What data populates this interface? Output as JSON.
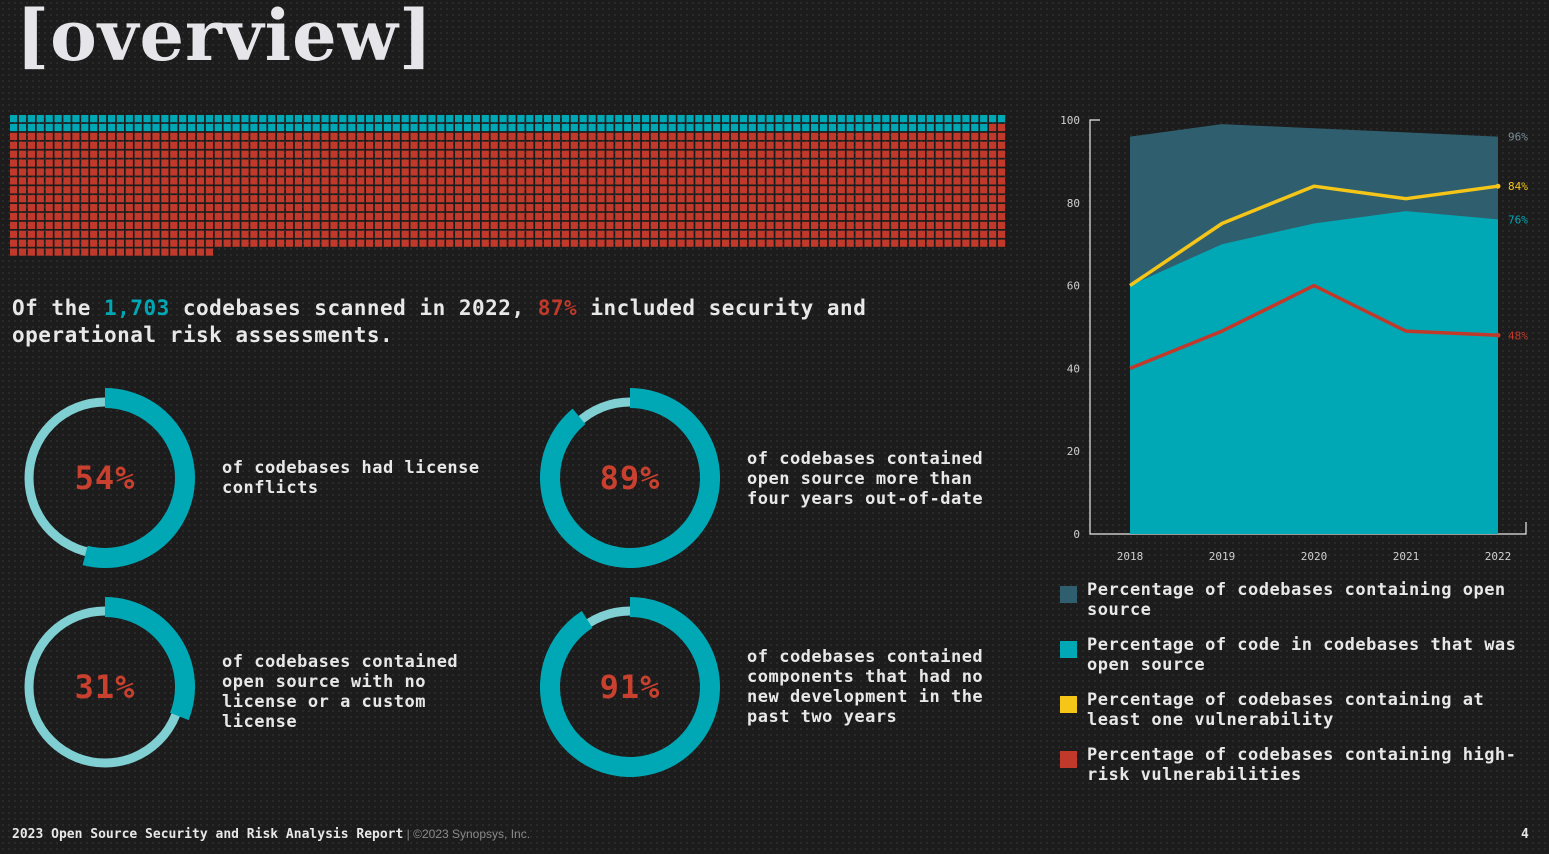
{
  "page_title": "[overview]",
  "summary": {
    "part1": "Of the ",
    "count": "1,703",
    "part2": " codebases scanned in 2022, ",
    "percent": "87%",
    "part3": " included security and operational risk assessments."
  },
  "waffle": {
    "total_cells": 1703,
    "highlighted_cells": 1481,
    "highlight_color": "#c0392b",
    "base_color": "#00a8b5"
  },
  "stats": [
    {
      "value": "54%",
      "fraction": 0.54,
      "label": "of codebases had license conflicts"
    },
    {
      "value": "89%",
      "fraction": 0.89,
      "label": "of codebases contained open source more than four years out-of-date"
    },
    {
      "value": "31%",
      "fraction": 0.31,
      "label": "of codebases contained open source with no license or a custom license"
    },
    {
      "value": "91%",
      "fraction": 0.91,
      "label": "of codebases contained components that had no new development in the past two years"
    }
  ],
  "colors": {
    "donut_fill": "#00a8b5",
    "donut_track": "#7fcfd3",
    "accent_red": "#c9402f",
    "area_open_source": "#2f5f6e",
    "area_code": "#00a8b5",
    "line_vuln": "#f5c518",
    "line_high_risk": "#c0392b"
  },
  "chart_data": {
    "type": "area",
    "x": [
      "2018",
      "2019",
      "2020",
      "2021",
      "2022"
    ],
    "ylim": [
      0,
      100
    ],
    "yticks": [
      "0",
      "20",
      "40",
      "60",
      "80",
      "100"
    ],
    "series": [
      {
        "name": "Percentage of codebases containing open source",
        "kind": "area",
        "color": "#2f5f6e",
        "values": [
          96,
          99,
          98,
          97,
          96
        ],
        "end_label": "96%"
      },
      {
        "name": "Percentage of code in codebases that was open source",
        "kind": "area",
        "color": "#00a8b5",
        "values": [
          60,
          70,
          75,
          78,
          76
        ],
        "end_label": "76%"
      },
      {
        "name": "Percentage of codebases containing at least one vulnerability",
        "kind": "line",
        "color": "#f5c518",
        "values": [
          60,
          75,
          84,
          81,
          84
        ],
        "end_label": "84%"
      },
      {
        "name": "Percentage of codebases containing high-risk vulnerabilities",
        "kind": "line",
        "color": "#c0392b",
        "values": [
          40,
          49,
          60,
          49,
          48
        ],
        "end_label": "48%"
      }
    ]
  },
  "footer": {
    "report": "2023 Open Source Security and Risk Analysis Report",
    "copyright": " | ©2023 Synopsys, Inc.",
    "page": "4"
  }
}
